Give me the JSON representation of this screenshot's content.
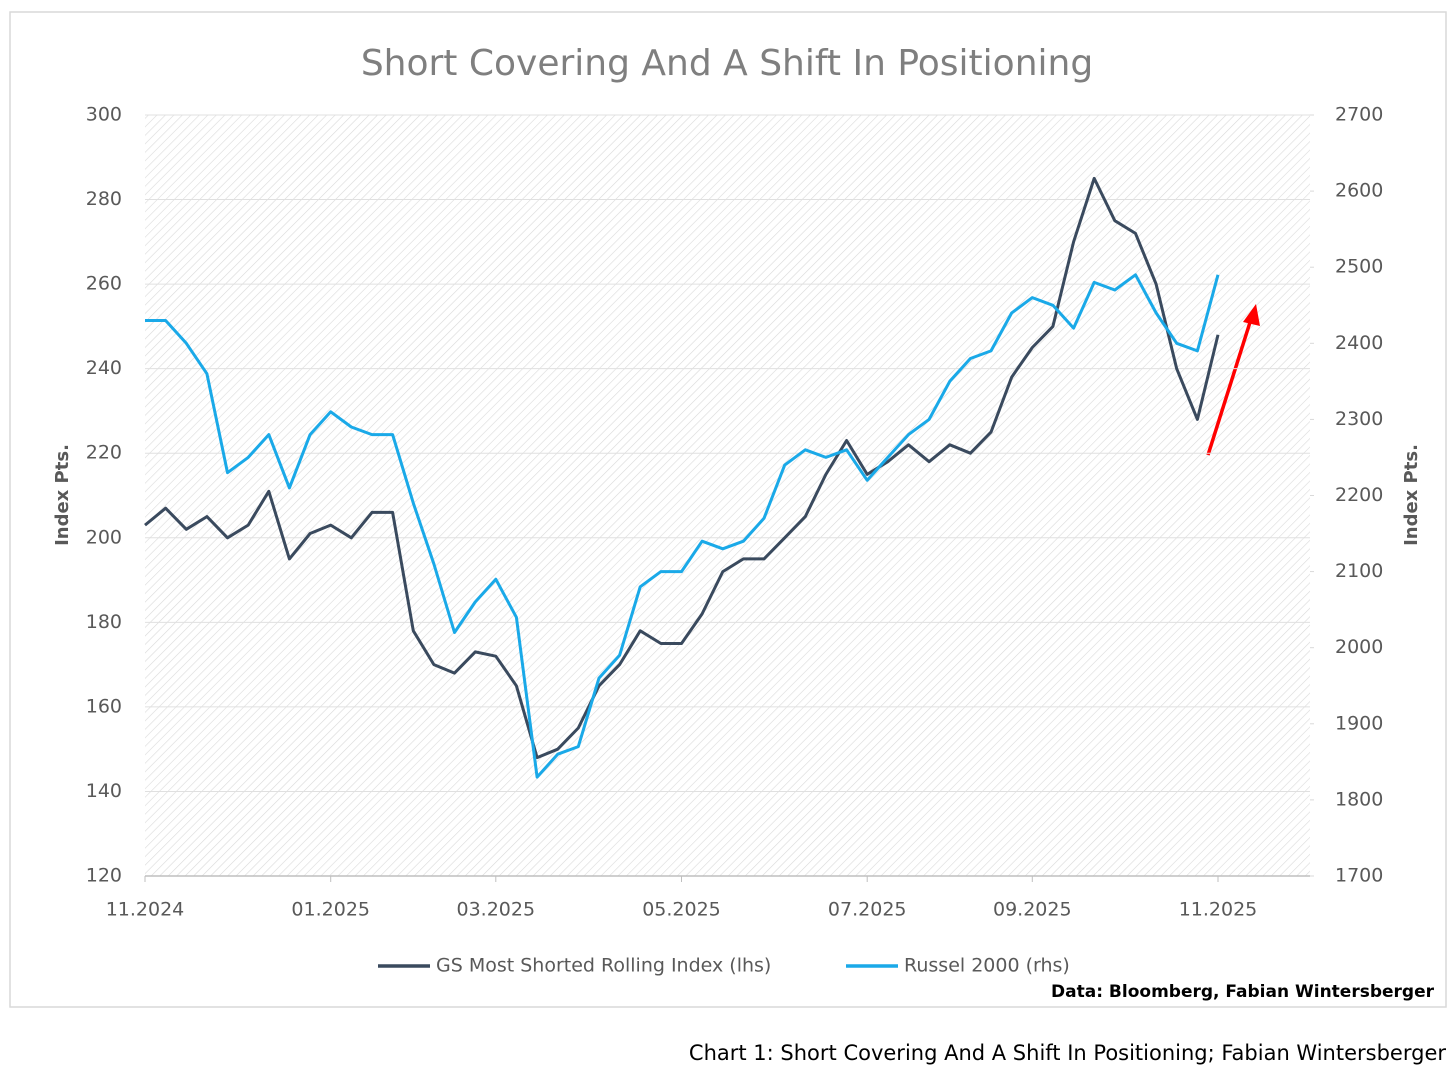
{
  "chart_data": {
    "type": "line",
    "title": "Short Covering And A Shift In Positioning",
    "ylabel": "Index Pts.",
    "y2label": "Index Pts.",
    "categories": [
      "11.2024",
      null,
      null,
      null,
      null,
      null,
      null,
      null,
      null,
      "01.2025",
      null,
      null,
      null,
      null,
      null,
      null,
      null,
      "03.2025",
      null,
      null,
      null,
      null,
      null,
      null,
      null,
      null,
      "05.2025",
      null,
      null,
      null,
      null,
      null,
      null,
      null,
      null,
      "07.2025",
      null,
      null,
      null,
      null,
      null,
      null,
      null,
      "09.2025",
      null,
      null,
      null,
      null,
      null,
      null,
      null,
      null,
      "11.2025"
    ],
    "series": [
      {
        "name": "GS Most Shorted Rolling Index (lhs)",
        "color": "#3a4a5e",
        "axis": "y",
        "values": [
          203,
          207,
          202,
          205,
          200,
          203,
          211,
          195,
          201,
          203,
          200,
          206,
          206,
          178,
          170,
          168,
          173,
          172,
          165,
          148,
          150,
          155,
          165,
          170,
          178,
          175,
          175,
          182,
          192,
          195,
          195,
          200,
          205,
          215,
          223,
          215,
          218,
          222,
          218,
          222,
          220,
          225,
          238,
          245,
          250,
          270,
          285,
          275,
          272,
          260,
          240,
          228,
          248
        ]
      },
      {
        "name": "Russel 2000 (rhs)",
        "color": "#1aa9e8",
        "axis": "y2",
        "values": [
          2430,
          2430,
          2400,
          2360,
          2230,
          2250,
          2280,
          2210,
          2280,
          2310,
          2290,
          2280,
          2280,
          2190,
          2110,
          2020,
          2060,
          2090,
          2040,
          1830,
          1860,
          1870,
          1960,
          1990,
          2080,
          2100,
          2100,
          2140,
          2130,
          2140,
          2170,
          2240,
          2260,
          2250,
          2260,
          2220,
          2250,
          2280,
          2300,
          2350,
          2380,
          2390,
          2440,
          2460,
          2450,
          2420,
          2480,
          2470,
          2490,
          2440,
          2400,
          2390,
          2490
        ]
      }
    ],
    "ylim": [
      120,
      300
    ],
    "yticks": [
      120,
      140,
      160,
      180,
      200,
      220,
      240,
      260,
      280,
      300
    ],
    "y2lim": [
      1700,
      2700
    ],
    "y2ticks": [
      1700,
      1800,
      1900,
      2000,
      2100,
      2200,
      2300,
      2400,
      2500,
      2600,
      2700
    ],
    "grid": true,
    "legend": "bottom",
    "source": "Data: Bloomberg, Fabian Wintersberger"
  },
  "caption": "Chart 1: Short Covering And A Shift In Positioning; Fabian Wintersberger"
}
